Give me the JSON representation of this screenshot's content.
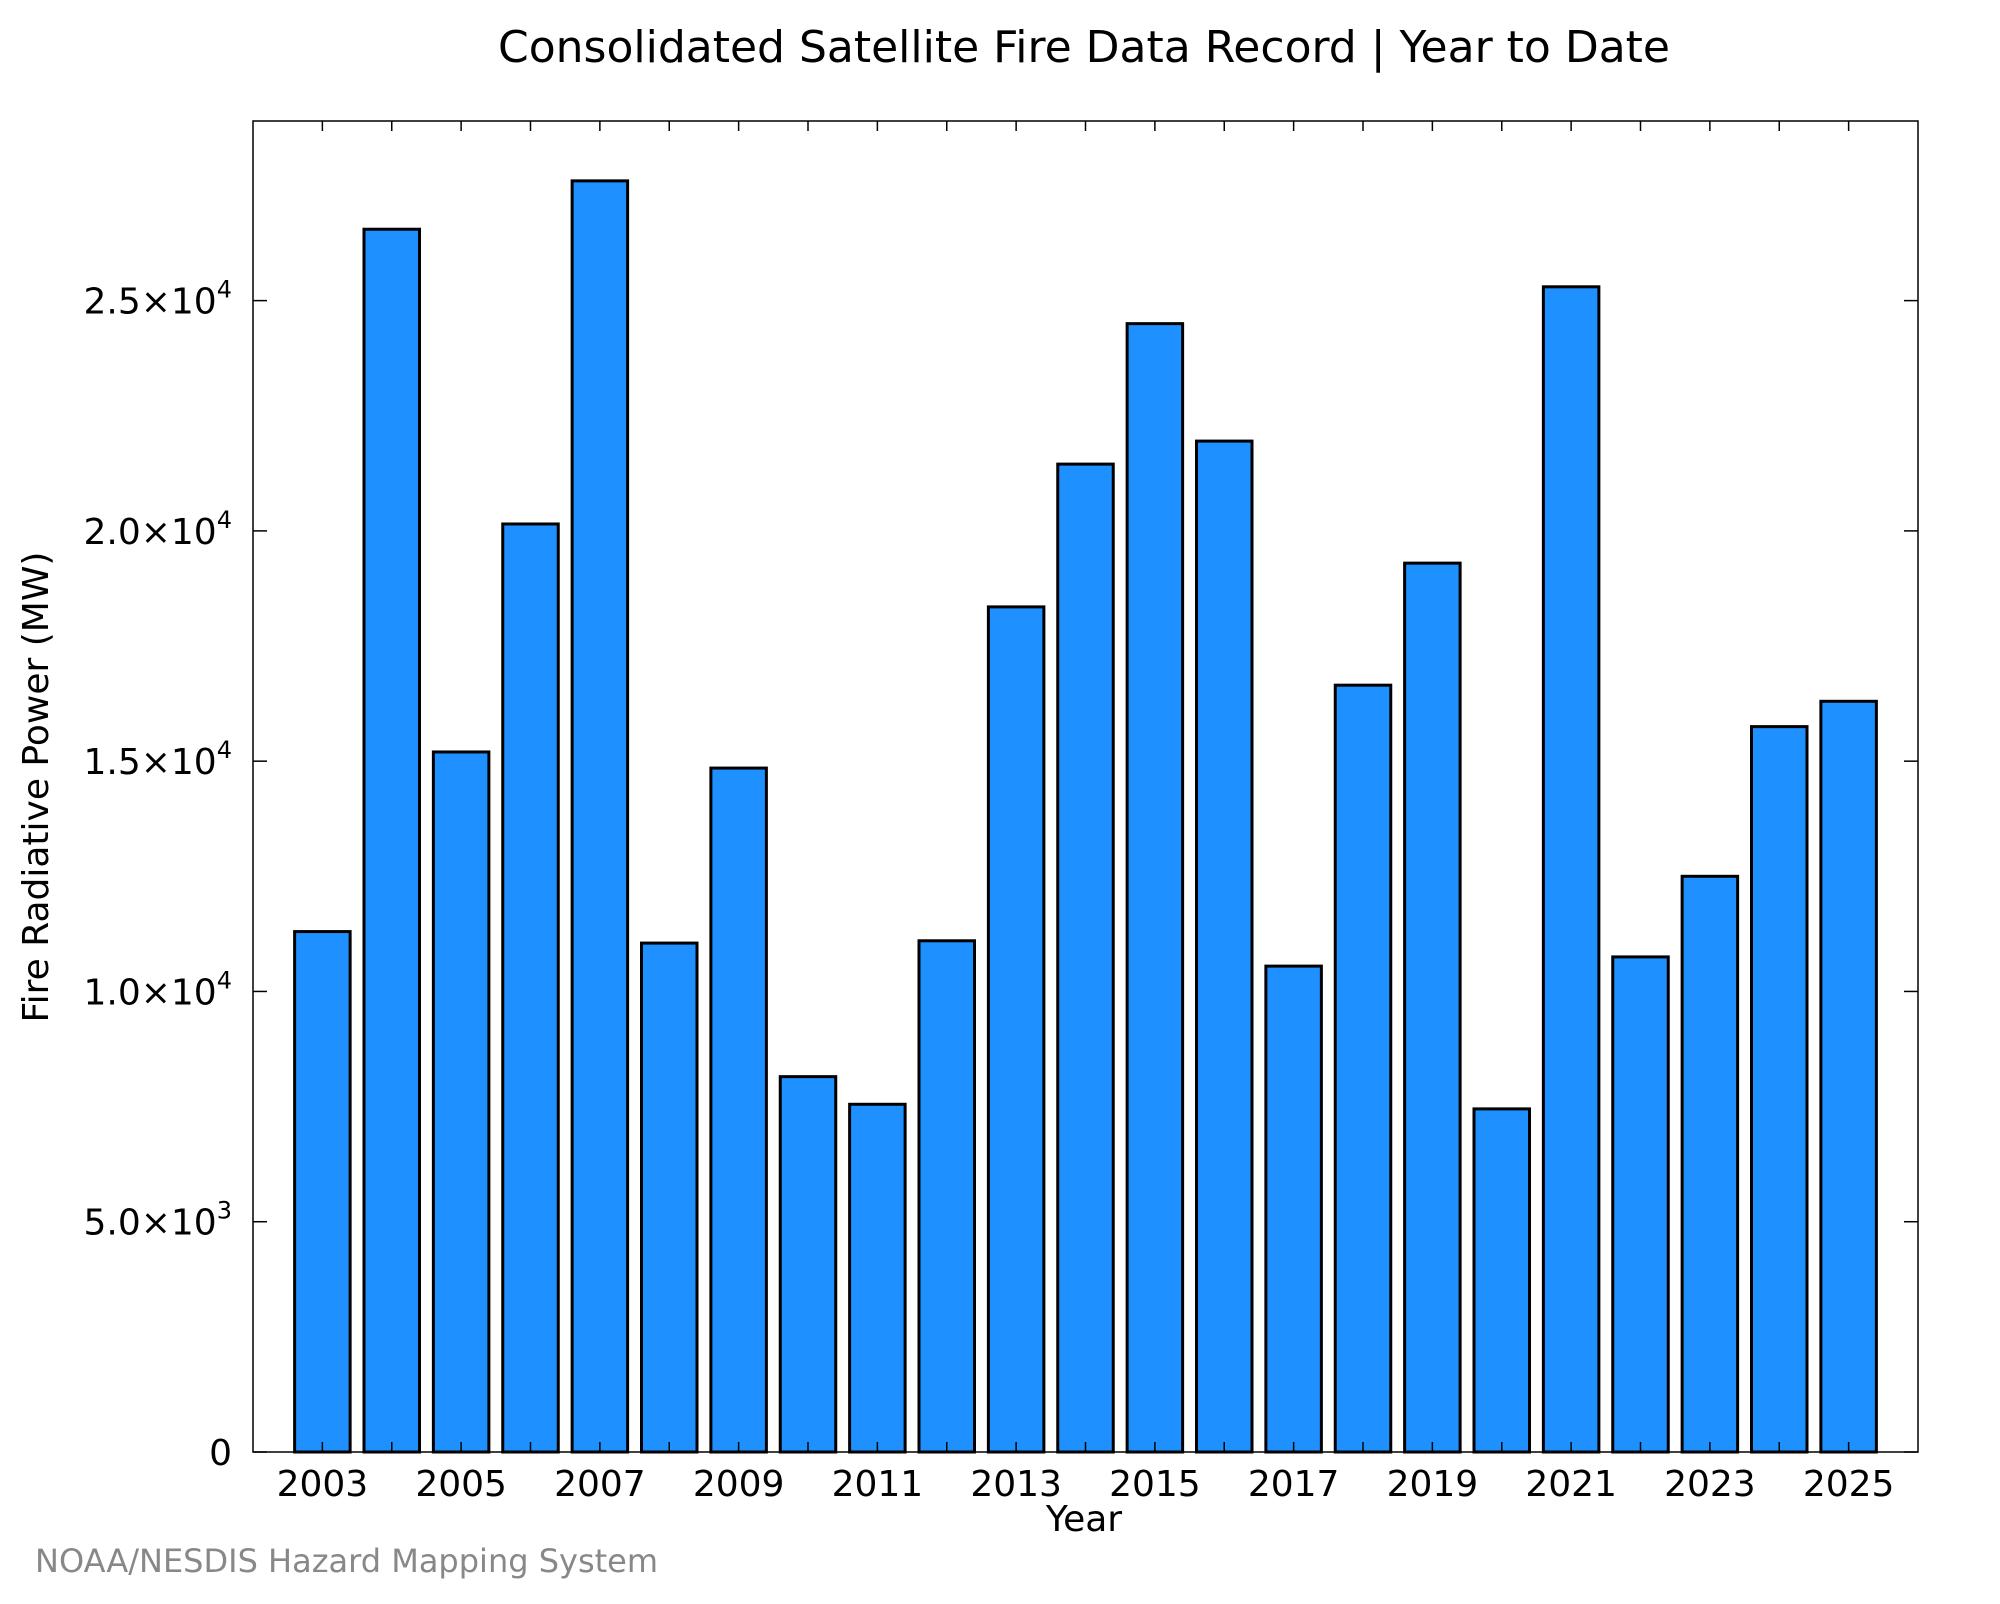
{
  "chart_data": {
    "type": "bar",
    "title": "Consolidated Satellite Fire Data Record | Year to Date",
    "xlabel": "Year",
    "ylabel": "Fire Radiative Power (MW)",
    "categories": [
      2003,
      2004,
      2005,
      2006,
      2007,
      2008,
      2009,
      2010,
      2011,
      2012,
      2013,
      2014,
      2015,
      2016,
      2017,
      2018,
      2019,
      2020,
      2021,
      2022,
      2023,
      2024,
      2025
    ],
    "values": [
      11300,
      26550,
      15200,
      20150,
      27600,
      11050,
      14850,
      8150,
      7550,
      11100,
      18350,
      21450,
      24500,
      21950,
      10550,
      16650,
      19300,
      7450,
      25300,
      10750,
      12500,
      15750,
      16300
    ],
    "x_tick_labels": [
      "2003",
      "2005",
      "2007",
      "2009",
      "2011",
      "2013",
      "2015",
      "2017",
      "2019",
      "2021",
      "2023",
      "2025"
    ],
    "y_ticks": [
      {
        "value": 0,
        "mantissa": "0",
        "exponent": ""
      },
      {
        "value": 5000,
        "mantissa": "5.0×10",
        "exponent": "3"
      },
      {
        "value": 10000,
        "mantissa": "1.0×10",
        "exponent": "4"
      },
      {
        "value": 15000,
        "mantissa": "1.5×10",
        "exponent": "4"
      },
      {
        "value": 20000,
        "mantissa": "2.0×10",
        "exponent": "4"
      },
      {
        "value": 25000,
        "mantissa": "2.5×10",
        "exponent": "4"
      }
    ],
    "xlim": [
      2002.0,
      2026.0
    ],
    "ylim": [
      0,
      28900
    ],
    "grid": false,
    "bar_color": "#1e90ff",
    "bar_edge_color": "#000000",
    "footer": "NOAA/NESDIS Hazard Mapping System",
    "footer_color": "#888888"
  }
}
